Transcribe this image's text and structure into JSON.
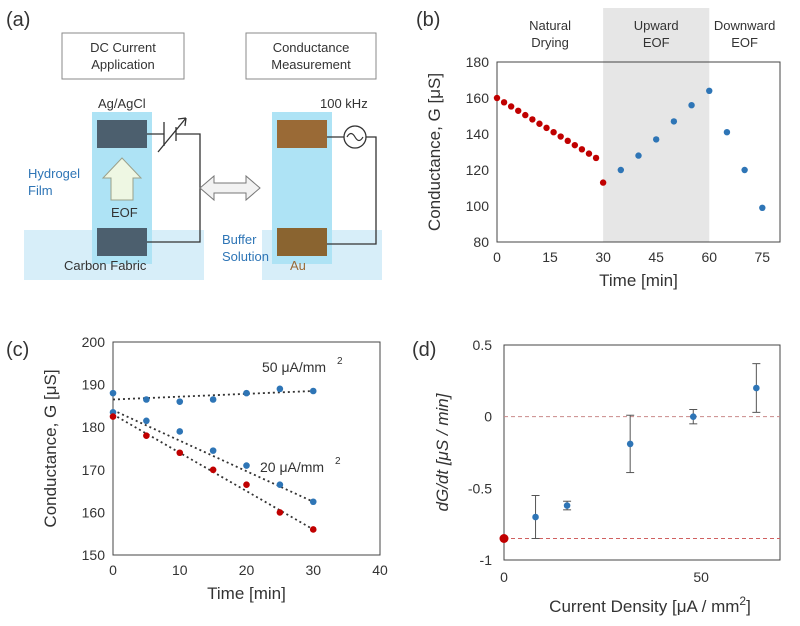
{
  "panel_labels": {
    "a": "(a)",
    "b": "(b)",
    "c": "(c)",
    "d": "(d)"
  },
  "schematic": {
    "dc_box": "DC Current\nApplication",
    "cond_box": "Conductance\nMeasurement",
    "ag_label": "Ag/AgCl",
    "freq_label": "100 kHz",
    "hydrogel_label": "Hydrogel\nFilm",
    "eof_label": "EOF",
    "carbon_label": "Carbon Fabric",
    "buffer_label": "Buffer\nSolution",
    "au_label": "Au"
  },
  "colors": {
    "blue": "#2e75b6",
    "red": "#c00000",
    "shade": "#e6e6e6"
  },
  "chart_data": [
    {
      "id": "b",
      "type": "scatter",
      "xlabel": "Time [min]",
      "ylabel": "Conductance, G [μS]",
      "xlim": [
        0,
        80
      ],
      "ylim": [
        80,
        180
      ],
      "xticks": [
        0,
        15,
        30,
        45,
        60,
        75
      ],
      "yticks": [
        80,
        100,
        120,
        140,
        160,
        180
      ],
      "regions": [
        {
          "label": "Natural\nDrying",
          "x0": 0,
          "x1": 30,
          "shaded": false
        },
        {
          "label": "Upward\nEOF",
          "x0": 30,
          "x1": 60,
          "shaded": true
        },
        {
          "label": "Downward\nEOF",
          "x0": 60,
          "x1": 80,
          "shaded": false
        }
      ],
      "series": [
        {
          "name": "natural",
          "color": "#c00000",
          "x": [
            0,
            2,
            4,
            6,
            8,
            10,
            12,
            14,
            16,
            18,
            20,
            22,
            24,
            26,
            28,
            30
          ],
          "y": [
            160,
            157.6,
            155.3,
            152.9,
            150.5,
            148.1,
            145.7,
            143.4,
            141,
            138.6,
            136.2,
            133.8,
            131.5,
            129.1,
            126.7,
            113
          ]
        },
        {
          "name": "eof",
          "color": "#2e75b6",
          "x": [
            35,
            40,
            45,
            50,
            55,
            60,
            65,
            70,
            75
          ],
          "y": [
            120,
            128,
            137,
            147,
            156,
            164,
            141,
            120,
            99
          ]
        }
      ]
    },
    {
      "id": "c",
      "type": "scatter",
      "xlabel": "Time [min]",
      "ylabel": "Conductance, G [μS]",
      "xlim": [
        0,
        40
      ],
      "ylim": [
        150,
        200
      ],
      "xticks": [
        0,
        10,
        20,
        30,
        40
      ],
      "yticks": [
        150,
        160,
        170,
        180,
        190,
        200
      ],
      "annotations": [
        "50 μA/mm",
        "2",
        "20 μA/mm",
        "2"
      ],
      "series": [
        {
          "name": "50 μA/mm2",
          "color": "#2e75b6",
          "x": [
            0,
            5,
            10,
            15,
            20,
            25,
            30
          ],
          "y": [
            188,
            186.5,
            186,
            186.5,
            188,
            189,
            188.5
          ],
          "fit": [
            186.5,
            188.5
          ]
        },
        {
          "name": "20 μA/mm2",
          "color": "#2e75b6",
          "x": [
            0,
            5,
            10,
            15,
            20,
            25,
            30
          ],
          "y": [
            183.5,
            181.5,
            179,
            174.5,
            171,
            166.5,
            162.5
          ],
          "fit": [
            184,
            162.5
          ]
        },
        {
          "name": "natural",
          "color": "#c00000",
          "x": [
            0,
            5,
            10,
            15,
            20,
            25,
            30
          ],
          "y": [
            182.5,
            178,
            174,
            170,
            166.5,
            160,
            156
          ],
          "fit": [
            183,
            156
          ]
        }
      ]
    },
    {
      "id": "d",
      "type": "scatter",
      "xlabel": "Current Density [μA / mm",
      "xlabel_sup": "2",
      "xlabel_end": "]",
      "ylabel": "dG/dt [μS / min]",
      "xlim": [
        0,
        70
      ],
      "ylim": [
        -1,
        0.5
      ],
      "xticks": [
        0,
        50
      ],
      "yticks": [
        -1,
        -0.5,
        0,
        0.5
      ],
      "ytick_labels": [
        "-1",
        "-0.5",
        "0",
        "0.5"
      ],
      "reference_lines": [
        {
          "y": 0,
          "color": "#c98a8a"
        },
        {
          "y": -0.85,
          "color": "#d06060"
        }
      ],
      "series": [
        {
          "name": "natural",
          "color": "#c00000",
          "x": [
            0
          ],
          "y": [
            -0.85
          ],
          "err": [
            0
          ]
        },
        {
          "name": "eof",
          "color": "#2e75b6",
          "x": [
            8,
            16,
            32,
            48,
            64
          ],
          "y": [
            -0.7,
            -0.62,
            -0.19,
            0.0,
            0.2
          ],
          "err": [
            0.15,
            0.03,
            0.2,
            0.05,
            0.17
          ]
        }
      ]
    }
  ]
}
